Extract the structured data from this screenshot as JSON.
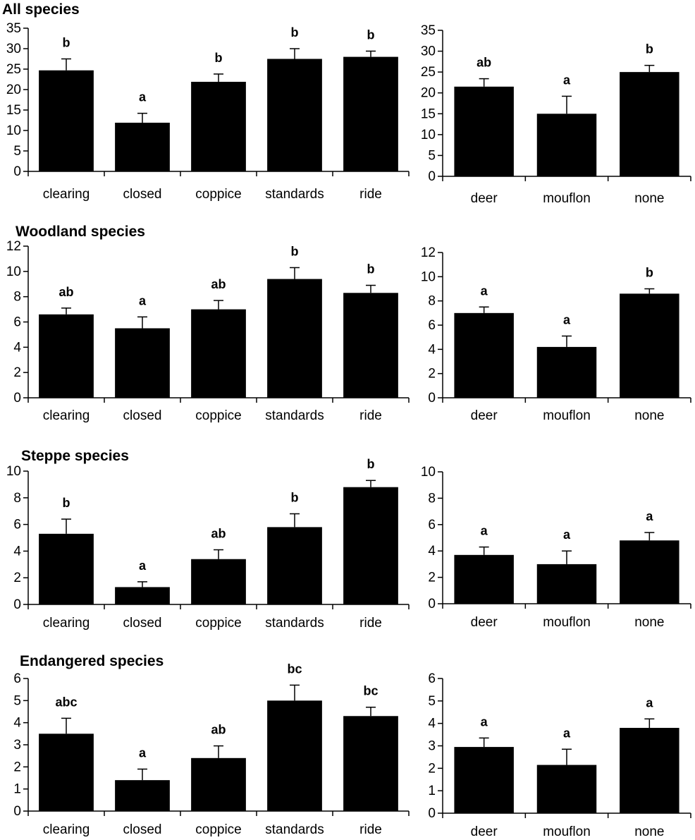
{
  "chart_data": [
    {
      "type": "bar",
      "group": "All species",
      "title": "All species",
      "categories": [
        "clearing",
        "closed",
        "coppice",
        "standards",
        "ride"
      ],
      "values": [
        24.7,
        11.9,
        21.9,
        27.5,
        28.0
      ],
      "errors": [
        2.8,
        2.3,
        1.9,
        2.5,
        1.4
      ],
      "significance": [
        "b",
        "a",
        "b",
        "b",
        "b"
      ],
      "ylim": [
        0,
        35
      ],
      "yticks": [
        0,
        5,
        10,
        15,
        20,
        25,
        30,
        35
      ]
    },
    {
      "type": "bar",
      "group": "All species",
      "title": "",
      "categories": [
        "deer",
        "mouflon",
        "none"
      ],
      "values": [
        21.5,
        15.0,
        25.0
      ],
      "errors": [
        1.9,
        4.2,
        1.6
      ],
      "significance": [
        "ab",
        "a",
        "b"
      ],
      "ylim": [
        0,
        35
      ],
      "yticks": [
        0,
        5,
        10,
        15,
        20,
        25,
        30,
        35
      ]
    },
    {
      "type": "bar",
      "group": "Woodland species",
      "title": "Woodland species",
      "categories": [
        "clearing",
        "closed",
        "coppice",
        "standards",
        "ride"
      ],
      "values": [
        6.6,
        5.5,
        7.0,
        9.4,
        8.3
      ],
      "errors": [
        0.5,
        0.9,
        0.7,
        0.9,
        0.6
      ],
      "significance": [
        "ab",
        "a",
        "ab",
        "b",
        "b"
      ],
      "ylim": [
        0,
        12
      ],
      "yticks": [
        0,
        2,
        4,
        6,
        8,
        10,
        12
      ]
    },
    {
      "type": "bar",
      "group": "Woodland species",
      "title": "",
      "categories": [
        "deer",
        "mouflon",
        "none"
      ],
      "values": [
        7.0,
        4.2,
        8.6
      ],
      "errors": [
        0.5,
        0.9,
        0.4
      ],
      "significance": [
        "a",
        "a",
        "b"
      ],
      "ylim": [
        0,
        12
      ],
      "yticks": [
        0,
        2,
        4,
        6,
        8,
        10,
        12
      ]
    },
    {
      "type": "bar",
      "group": "Steppe species",
      "title": "Steppe species",
      "categories": [
        "clearing",
        "closed",
        "coppice",
        "standards",
        "ride"
      ],
      "values": [
        5.3,
        1.3,
        3.4,
        5.8,
        8.8
      ],
      "errors": [
        1.1,
        0.4,
        0.7,
        1.0,
        0.5
      ],
      "significance": [
        "b",
        "a",
        "ab",
        "b",
        "b"
      ],
      "ylim": [
        0,
        10
      ],
      "yticks": [
        0,
        2,
        4,
        6,
        8,
        10
      ]
    },
    {
      "type": "bar",
      "group": "Steppe species",
      "title": "",
      "categories": [
        "deer",
        "mouflon",
        "none"
      ],
      "values": [
        3.7,
        3.0,
        4.8
      ],
      "errors": [
        0.6,
        1.0,
        0.6
      ],
      "significance": [
        "a",
        "a",
        "a"
      ],
      "ylim": [
        0,
        10
      ],
      "yticks": [
        0,
        2,
        4,
        6,
        8,
        10
      ]
    },
    {
      "type": "bar",
      "group": "Endangered species",
      "title": "Endangered species",
      "categories": [
        "clearing",
        "closed",
        "coppice",
        "standards",
        "ride"
      ],
      "values": [
        3.5,
        1.4,
        2.4,
        5.0,
        4.3
      ],
      "errors": [
        0.7,
        0.5,
        0.55,
        0.7,
        0.4
      ],
      "significance": [
        "abc",
        "a",
        "ab",
        "bc",
        "bc"
      ],
      "ylim": [
        0,
        6
      ],
      "yticks": [
        0,
        1,
        2,
        3,
        4,
        5,
        6
      ]
    },
    {
      "type": "bar",
      "group": "Endangered species",
      "title": "",
      "categories": [
        "deer",
        "mouflon",
        "none"
      ],
      "values": [
        2.95,
        2.15,
        3.8
      ],
      "errors": [
        0.4,
        0.7,
        0.4
      ],
      "significance": [
        "a",
        "a",
        "a"
      ],
      "ylim": [
        0,
        6
      ],
      "yticks": [
        0,
        1,
        2,
        3,
        4,
        5,
        6
      ]
    }
  ],
  "style": {
    "bar_color": "#000000",
    "axis_color": "#000000",
    "background": "#ffffff"
  }
}
